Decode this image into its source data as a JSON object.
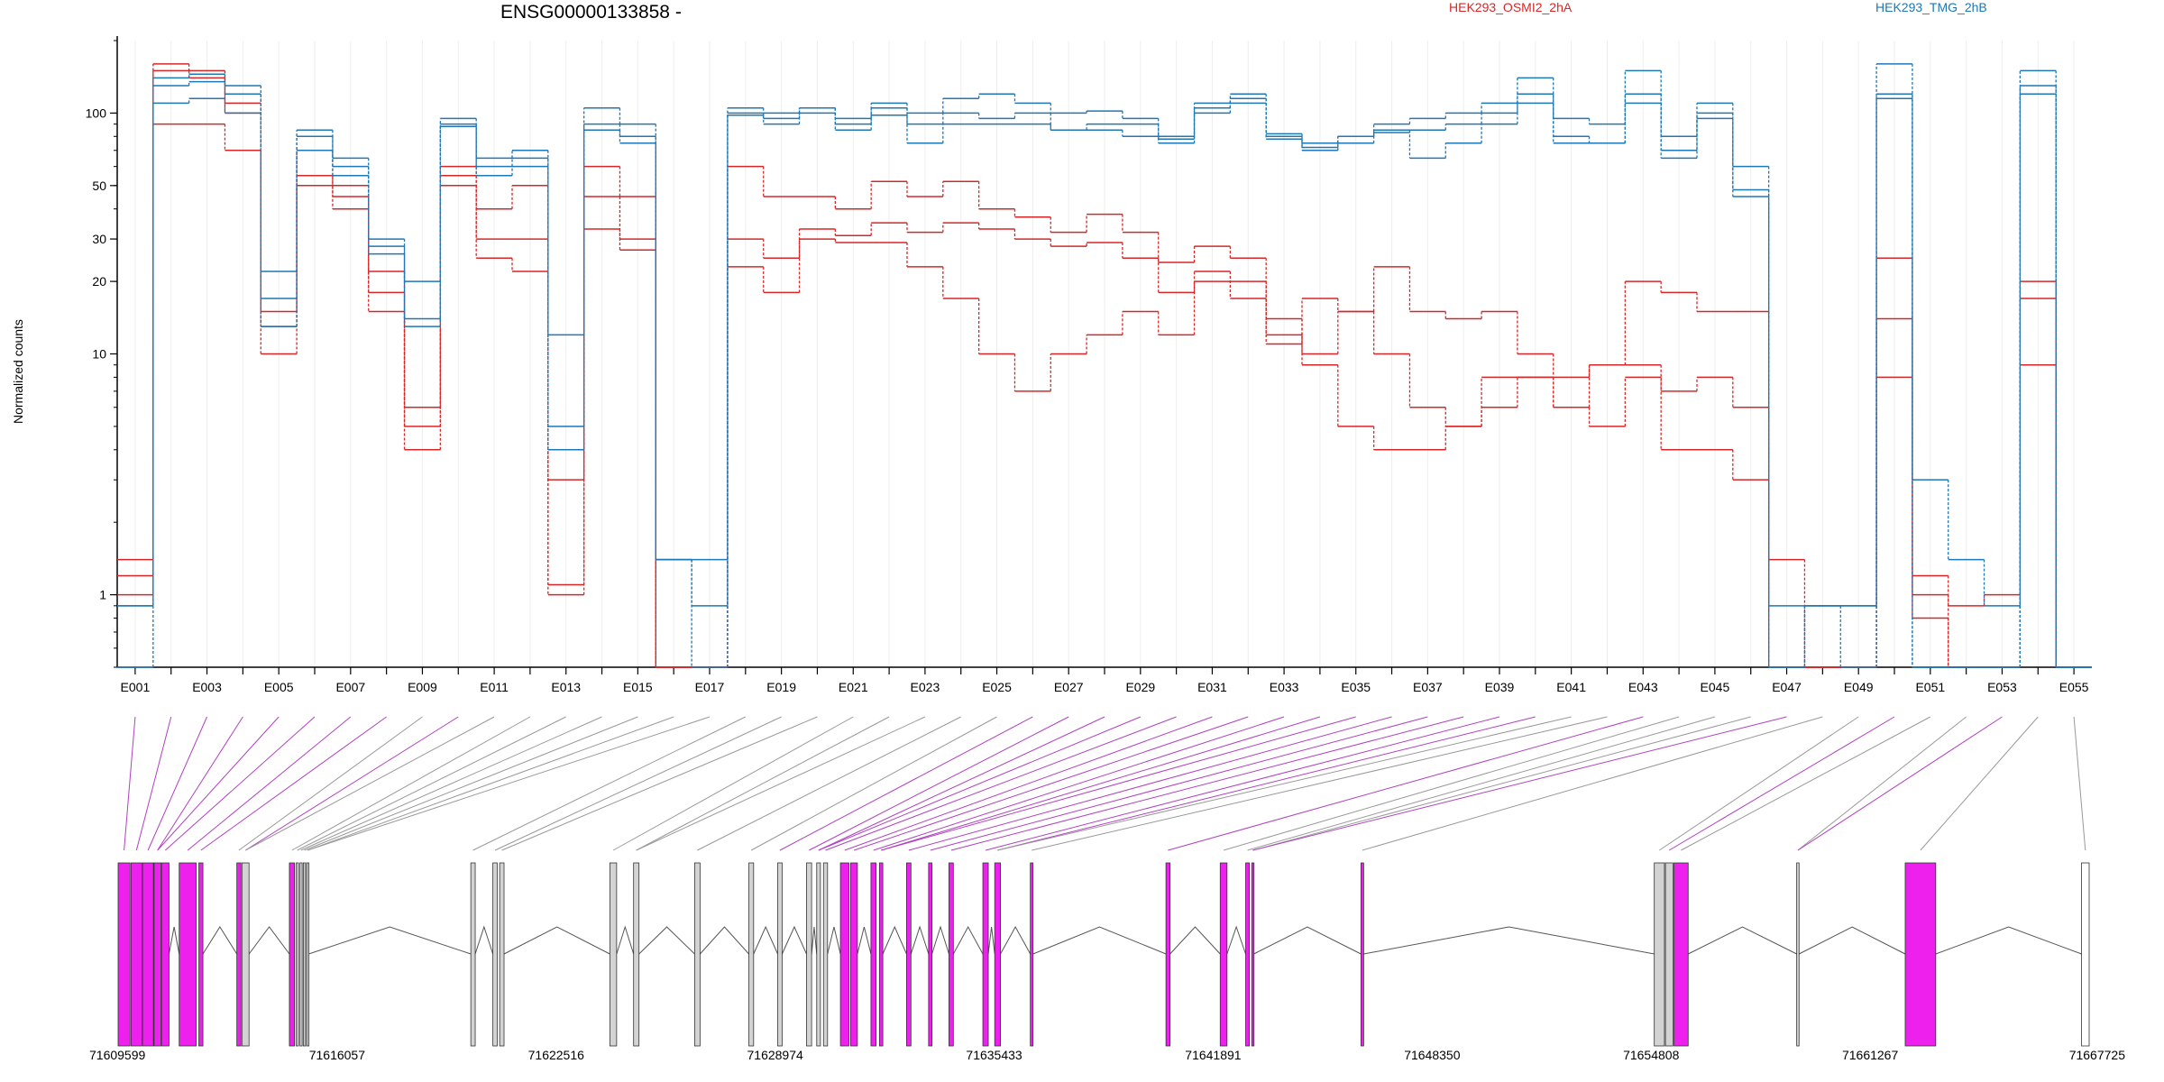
{
  "chart_data": {
    "type": "line",
    "title": "ENSG00000133858 -",
    "ylabel": "Normalized counts",
    "xlabel": "",
    "y_scale": "log",
    "y_ticks": [
      1,
      10,
      20,
      30,
      50,
      100
    ],
    "ylim": [
      0.5,
      200
    ],
    "legend_placement": "top",
    "grid": "vertical",
    "categories": [
      "E001",
      "E002",
      "E003",
      "E004",
      "E005",
      "E006",
      "E007",
      "E008",
      "E009",
      "E010",
      "E011",
      "E012",
      "E013",
      "E014",
      "E015",
      "E016",
      "E017",
      "E018",
      "E019",
      "E020",
      "E021",
      "E022",
      "E023",
      "E024",
      "E025",
      "E026",
      "E027",
      "E028",
      "E029",
      "E030",
      "E031",
      "E032",
      "E033",
      "E034",
      "E035",
      "E036",
      "E037",
      "E038",
      "E039",
      "E040",
      "E041",
      "E042",
      "E043",
      "E044",
      "E045",
      "E046",
      "E047",
      "E048",
      "E049",
      "E050",
      "E051",
      "E052",
      "E053",
      "E054",
      "E055"
    ],
    "category_labels_shown": [
      "E001",
      "E003",
      "E005",
      "E007",
      "E009",
      "E011",
      "E013",
      "E015",
      "E017",
      "E019",
      "E021",
      "E023",
      "E025",
      "E027",
      "E029",
      "E031",
      "E033",
      "E035",
      "E037",
      "E039",
      "E041",
      "E043",
      "E045",
      "E047",
      "E049",
      "E051",
      "E053",
      "E055"
    ],
    "series": [
      {
        "name": "HEK293_OSMI2_2hA",
        "group": "HEK293_OSMI2_2hA",
        "color": "#d62728",
        "values": [
          1.2,
          160,
          150,
          110,
          10,
          70,
          45,
          22,
          6,
          60,
          40,
          50,
          1.0,
          60,
          45,
          0.5,
          0.5,
          60,
          45,
          45,
          40,
          52,
          45,
          52,
          40,
          37,
          32,
          38,
          32,
          24,
          28,
          25,
          14,
          10,
          15,
          10,
          6,
          5,
          6,
          8,
          6,
          5,
          8,
          7,
          8,
          6,
          0.5,
          0.5,
          0.5,
          14,
          1.2,
          0.9,
          1.0,
          20,
          0.5
        ]
      },
      {
        "name": "HEK293_OSMI2_2hA",
        "group": "HEK293_OSMI2_2hA",
        "color": "#d62728",
        "values": [
          1.4,
          150,
          140,
          100,
          13,
          55,
          50,
          18,
          5,
          55,
          30,
          30,
          3,
          45,
          30,
          0.5,
          0.5,
          30,
          25,
          33,
          31,
          35,
          32,
          35,
          33,
          30,
          28,
          29,
          25,
          18,
          22,
          17,
          11,
          17,
          15,
          23,
          15,
          14,
          15,
          10,
          8,
          9,
          20,
          18,
          15,
          15,
          0.5,
          0.5,
          0.5,
          25,
          0.8,
          0.5,
          0.5,
          17,
          0.5
        ]
      },
      {
        "name": "HEK293_OSMI2_2hA",
        "group": "HEK293_OSMI2_2hA",
        "color": "#d62728",
        "values": [
          1.0,
          90,
          90,
          70,
          15,
          50,
          40,
          15,
          4,
          50,
          25,
          22,
          1.1,
          33,
          27,
          0.5,
          0.5,
          23,
          18,
          30,
          29,
          29,
          23,
          17,
          10,
          7,
          10,
          12,
          15,
          12,
          20,
          20,
          12,
          9,
          5,
          4,
          4,
          5,
          8,
          8,
          6,
          9,
          9,
          4,
          4,
          3,
          1.4,
          0.5,
          0.5,
          8,
          1.0,
          0.5,
          0.5,
          9,
          0.5
        ]
      },
      {
        "name": "HEK293_TMG_2hB",
        "group": "HEK293_TMG_2hB",
        "color": "#1f77b4",
        "values": [
          0.9,
          140,
          145,
          130,
          22,
          85,
          65,
          30,
          20,
          95,
          65,
          70,
          12,
          105,
          90,
          1.4,
          1.4,
          105,
          100,
          105,
          95,
          110,
          100,
          115,
          120,
          110,
          100,
          102,
          95,
          80,
          110,
          120,
          82,
          75,
          80,
          90,
          95,
          100,
          110,
          140,
          95,
          90,
          150,
          80,
          110,
          60,
          0.9,
          0.9,
          0.9,
          160,
          3,
          1.4,
          0.9,
          150,
          0.5
        ]
      },
      {
        "name": "HEK293_TMG_2hB",
        "group": "HEK293_TMG_2hB",
        "color": "#1f77b4",
        "values": [
          0.9,
          130,
          135,
          120,
          17,
          80,
          60,
          28,
          14,
          90,
          60,
          65,
          4,
          90,
          80,
          1.4,
          0.5,
          100,
          95,
          105,
          90,
          105,
          90,
          100,
          95,
          100,
          85,
          90,
          90,
          75,
          105,
          115,
          80,
          70,
          75,
          85,
          65,
          75,
          90,
          110,
          75,
          75,
          120,
          65,
          100,
          45,
          0.5,
          0.9,
          0.5,
          120,
          0.5,
          0.5,
          0.5,
          130,
          0.5
        ]
      },
      {
        "name": "HEK293_TMG_2hB",
        "group": "HEK293_TMG_2hB",
        "color": "#1f77b4",
        "values": [
          0.5,
          110,
          115,
          100,
          13,
          70,
          55,
          26,
          13,
          88,
          55,
          60,
          5,
          85,
          75,
          1.4,
          0.9,
          98,
          90,
          100,
          85,
          98,
          75,
          90,
          90,
          90,
          85,
          85,
          80,
          78,
          100,
          110,
          78,
          72,
          80,
          83,
          85,
          90,
          100,
          120,
          80,
          75,
          110,
          70,
          95,
          48,
          0.5,
          0.9,
          0.9,
          115,
          0.5,
          0.5,
          0.5,
          120,
          0.5
        ]
      }
    ],
    "gene_model": {
      "coordinate_ticks": [
        "71609599",
        "71616057",
        "71622516",
        "71628974",
        "71635433",
        "71641891",
        "71648350",
        "71654808",
        "71661267",
        "71667725"
      ],
      "exon_colors": {
        "differential": "#ee20ee",
        "other": "#d3d3d3",
        "last": "#ffffff"
      }
    }
  }
}
